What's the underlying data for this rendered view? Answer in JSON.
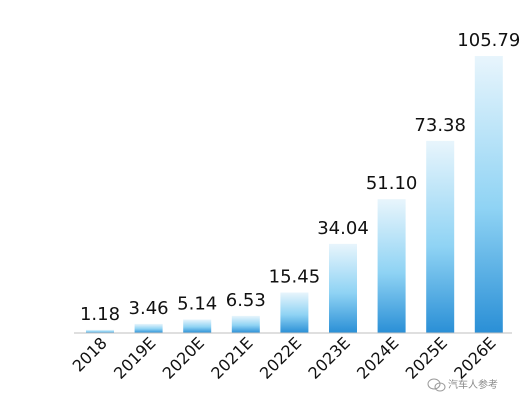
{
  "chart_data": {
    "type": "bar",
    "categories": [
      "2018",
      "2019E",
      "2020E",
      "2021E",
      "2022E",
      "2023E",
      "2024E",
      "2025E",
      "2026E"
    ],
    "values": [
      1.18,
      3.46,
      5.14,
      6.53,
      15.45,
      34.04,
      51.1,
      73.38,
      105.79
    ],
    "value_labels": [
      "1.18",
      "3.46",
      "5.14",
      "6.53",
      "15.45",
      "34.04",
      "51.10",
      "73.38",
      "105.79"
    ],
    "title": "",
    "xlabel": "",
    "ylabel": "",
    "ylim": [
      0,
      110
    ],
    "grid": false,
    "legend": "none",
    "bar_color_top": "#e8f5fc",
    "bar_color_mid": "#8fd3f4",
    "bar_color_bottom": "#2a8fd6",
    "baseline_color": "#bfbfbf"
  },
  "watermark": {
    "icon": "wechat-icon",
    "text": "汽车人参考"
  }
}
